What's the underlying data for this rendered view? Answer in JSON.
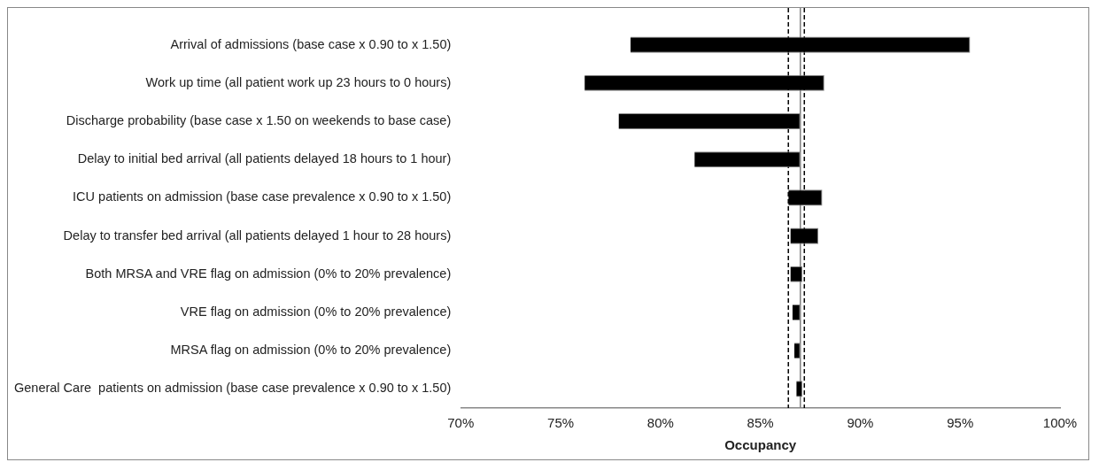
{
  "chart_data": {
    "type": "bar",
    "orientation": "horizontal",
    "xlabel": "Occupancy",
    "categories": [
      "Arrival of admissions (base case x 0.90 to x 1.50)",
      "Work up time (all patient work up 23 hours to 0 hours)",
      "Discharge probability (base case x 1.50 on weekends to base case)",
      "Delay to initial bed arrival (all patients delayed 18 hours to 1 hour)",
      "ICU patients on admission (base case prevalence x 0.90 to x 1.50)",
      "Delay to transfer bed arrival (all patients delayed 1 hour to 28 hours)",
      "Both MRSA and VRE flag on admission (0% to 20% prevalence)",
      "VRE flag on admission (0% to 20% prevalence)",
      "MRSA flag on admission (0% to 20% prevalence)",
      "General Care  patients on admission (base case prevalence x 0.90 to x 1.50)"
    ],
    "base": [
      78.5,
      76.2,
      77.9,
      81.7,
      86.4,
      86.5,
      86.5,
      86.6,
      86.7,
      86.8
    ],
    "values": [
      17.0,
      12.0,
      9.1,
      5.3,
      1.7,
      1.4,
      0.6,
      0.4,
      0.3,
      0.3
    ],
    "color": "#000000",
    "xlim": [
      70,
      100
    ],
    "xticks": [
      {
        "value": 70,
        "label": "70%"
      },
      {
        "value": 75,
        "label": "75%"
      },
      {
        "value": 80,
        "label": "80%"
      },
      {
        "value": 85,
        "label": "85%"
      },
      {
        "value": 90,
        "label": "90%"
      },
      {
        "value": 95,
        "label": "95%"
      },
      {
        "value": 100,
        "label": "100%"
      }
    ],
    "ref_lines": [
      {
        "axis": "x",
        "value": 87.0,
        "color": "#808080",
        "line_style": "solid"
      },
      {
        "axis": "x",
        "value": 86.4,
        "color": "#000000",
        "line_style": "dashed"
      },
      {
        "axis": "x",
        "value": 87.2,
        "color": "#000000",
        "line_style": "dashed"
      }
    ],
    "grid": false,
    "legend": false
  }
}
